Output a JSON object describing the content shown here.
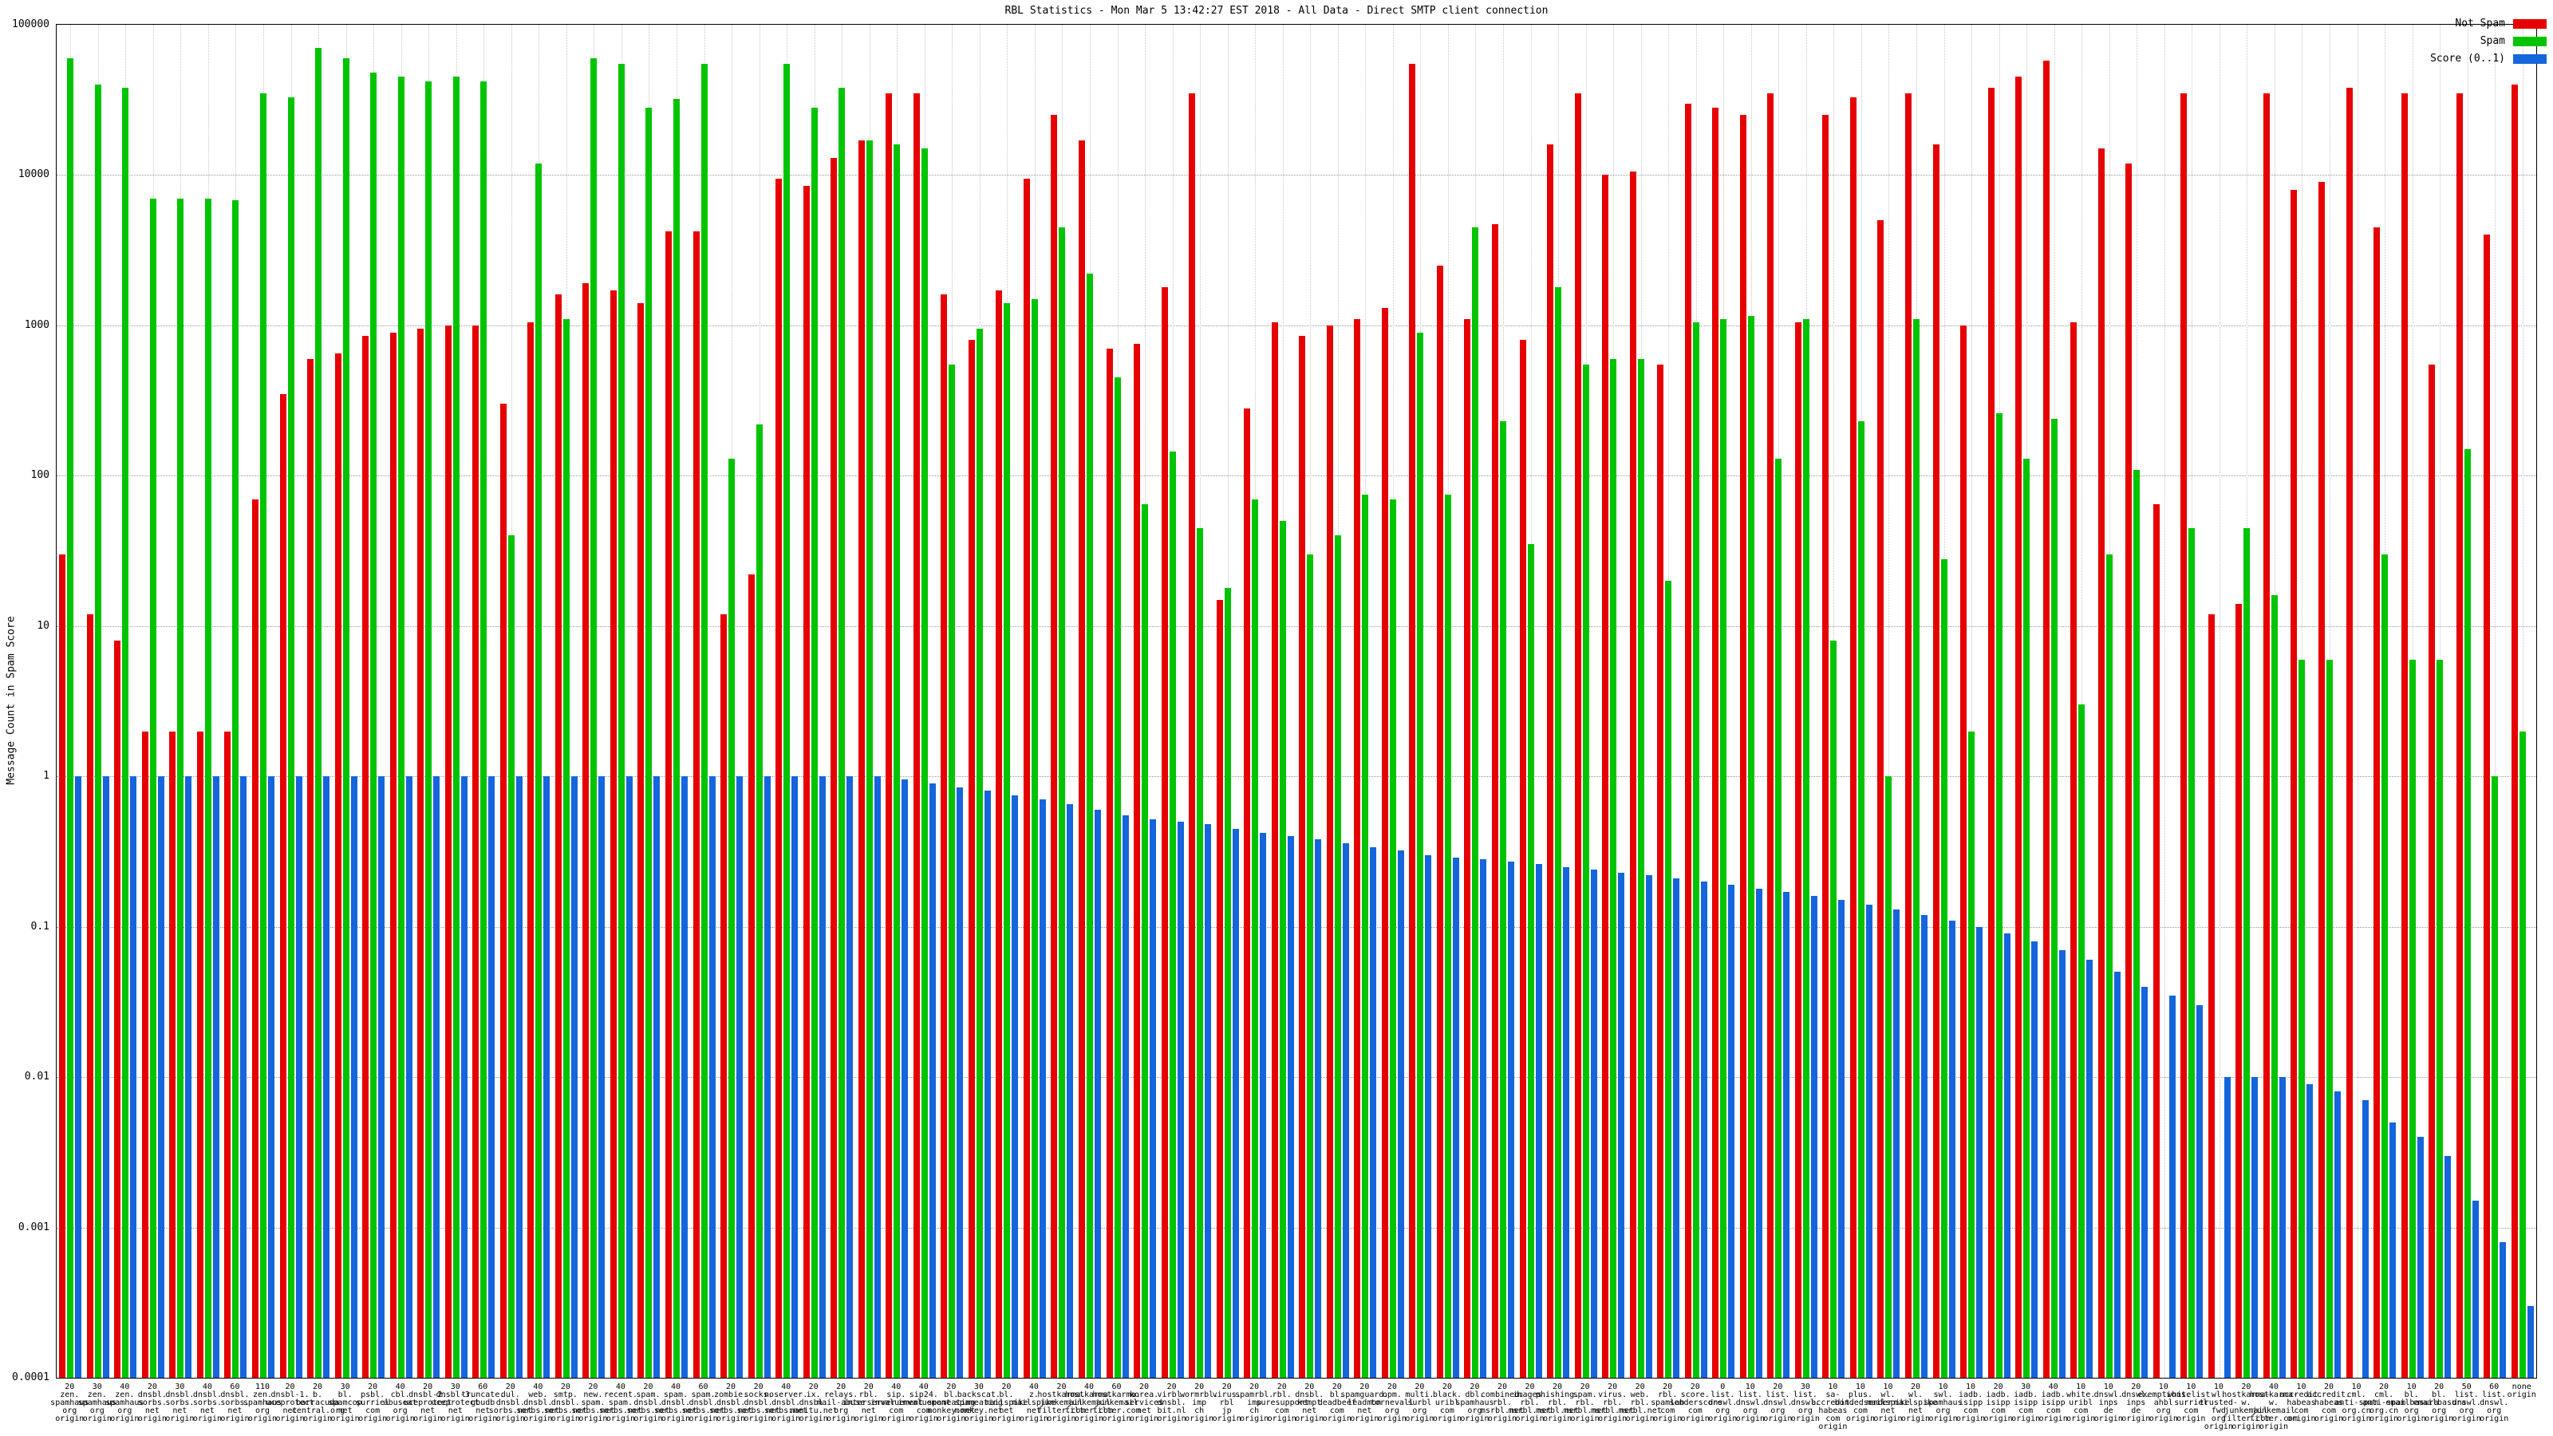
{
  "title": "RBL Statistics - Mon Mar  5 13:42:27 EST 2018 - All Data - Direct SMTP client connection",
  "axes": {
    "y_label": "Message Count in Spam Score",
    "y_ticks": [
      "100000",
      "10000",
      "1000",
      "100",
      "10",
      "1",
      "0.1",
      "0.01",
      "0.001",
      "0.0001"
    ],
    "y_max": 100000,
    "y_min": 0.0001
  },
  "legend": {
    "position": "top-right",
    "items": [
      "Not Spam",
      "Spam",
      "Score (0..1)"
    ]
  },
  "chart_data": {
    "type": "bar",
    "title": "RBL Statistics - Mon Mar  5 13:42:27 EST 2018 - All Data - Direct SMTP client connection",
    "xlabel": "",
    "ylabel": "Message Count in Spam Score",
    "yscale": "log",
    "ylim": [
      0.0001,
      100000
    ],
    "grid": true,
    "legend_position": "top-right",
    "categories": [
      "20\nzen.\nspamhaus\norg\norigin",
      "30\nzen.\nspamhaus\norg\norigin",
      "40\nzen.\nspamhaus\norg\norigin",
      "20\ndnsbl.\nsorbs.\nnet\norigin",
      "30\ndnsbl.\nsorbs.\nnet\norigin",
      "40\ndnsbl.\nsorbs.\nnet\norigin",
      "60\ndnsbl.\nsorbs.\nnet\norigin",
      "110\nzen.\nspamhaus\norg\norigin",
      "20\ndnsbl-1.\nuceprotect\nnet\norigin",
      "20\nb.\nbarracuda\ncentral.org\norigin",
      "30\nbl.\nspamcop\nnet\norigin",
      "20\npsbl.\nsurriel\ncom\norigin",
      "40\ncbl.\nabuseat\norg\norigin",
      "20\ndnsbl-2.\nuceprotect\nnet\norigin",
      "30\ndnsbl-3.\nuceprotect\nnet\norigin",
      "60\ntruncate.\ngbudb\nnet\norigin",
      "20\ndul.\ndnsbl.\nsorbs.net\norigin",
      "40\nweb.\ndnsbl.\nsorbs.net\norigin",
      "20\nsmtp.\ndnsbl.\nsorbs.net\norigin",
      "20\nnew.\nspam.\nsorbs.net\norigin",
      "40\nrecent.\nspam.\nsorbs.net\norigin",
      "20\nspam.\ndnsbl.\nsorbs.net\norigin",
      "40\nspam.\ndnsbl.\nsorbs.net\norigin",
      "60\nspam.\ndnsbl.\nsorbs.net\norigin",
      "20\nzombie.\ndnsbl.\nsorbs.net\norigin",
      "20\nsocks.\ndnsbl.\nsorbs.net\norigin",
      "40\nnoserver.\ndnsbl.\nsorbs.net\norigin",
      "20\nix.\ndnsbl.\nmanitu.net\norigin",
      "20\nrelays.\nmail-abuse\norg\norigin",
      "20\nrbl.\ninterserver\nnet\norigin",
      "40\nsip.\ninvaluement\ncom\norigin",
      "40\nsip24.\ninvaluement\ncom\norigin",
      "20\nbl.\nspameating\nmonkey.net\norigin",
      "30\nbackscat.\nspameating\nmonkey.net\norigin",
      "20\nbl.\nmailspike\nnet\norigin",
      "40\nz.\nmailspike\nnet\norigin",
      "20\nhostkarma.\njunkemail\nfilter.com\norigin",
      "40\nhostkarma.\njunkemail\nfilter.com\norigin",
      "60\nhostkarma.\njunkemail\nfilter.com\norigin",
      "20\nkorea.\nservices\nnet\norigin",
      "20\nvirbl.\ndnsbl.\nbit.nl\norigin",
      "20\nwormrbl.\nimp\nch\norigin",
      "20\nvirus.\nrbl\njp\norigin",
      "20\nspamrbl.\nimp\nch\norigin",
      "20\nrbl.\nsuresupport\ncom\norigin",
      "20\ndnsbl.\nkempt\nnet\norigin",
      "20\nbl.\ndeadbeef\ncom\norigin",
      "20\nspamguard.\nleadmon\nnet\norigin",
      "20\nopm.\ntornevall\norg\norigin",
      "20\nmulti.\nsurbl\norg\norigin",
      "20\nblack.\nuribl\ncom\norigin",
      "20\ndbl.\nspamhaus\norg\norigin",
      "20\ncombined.\nrbl.\nmsrbl.net\norigin",
      "20\nimages.\nrbl.\nmsrbl.net\norigin",
      "20\nphishing.\nrbl.\nmsrbl.net\norigin",
      "20\nspam.\nrbl.\nmsrbl.net\norigin",
      "20\nvirus.\nrbl.\nmsrbl.net\norigin",
      "20\nweb.\nrbl.\nmsrbl.net\norigin",
      "20\nrbl.\nspamlab\ncom\norigin",
      "20\nscore.\nsenderscore\ncom\norigin",
      "0\nlist.\ndnswl.\norg\norigin",
      "10\nlist.\ndnswl.\norg\norigin",
      "20\nlist.\ndnswl.\norg\norigin",
      "30\nlist.\ndnswl.\norg\norigin",
      "10\nsa-accredit.\nhabeas\ncom\norigin",
      "10\nplus.\nbondedsender\ncom\norigin",
      "10\nwl.\nmailspike\nnet\norigin",
      "20\nwl.\nmailspike\nnet\norigin",
      "10\nswl.\nspamhaus\norg\norigin",
      "10\niadb.\nisipp\ncom\norigin",
      "20\niadb.\nisipp\ncom\norigin",
      "30\niadb.\nisipp\ncom\norigin",
      "40\niadb.\nisipp\ncom\norigin",
      "10\nwhite.\nuribl\ncom\norigin",
      "10\ndnswl.\ninps\nde\norigin",
      "20\ndnswl.\ninps\nde\norigin",
      "10\nexemptions.\nahbl\norg\norigin",
      "10\nwhitelist.\nsurriel\ncom\norigin",
      "10\nwl.\ntrusted-fwd\norg\norigin",
      "20\nhostkarma-w.\njunkemail\nfilter.com\norigin",
      "40\nhostkarma-w.\njunkemail\nfilter.com\norigin",
      "10\naccredit.\nhabeas\ncom\norigin",
      "20\naccredit.\nhabeas\ncom\norigin",
      "10\ncml.\nanti-spam\norg.cn\norigin",
      "20\ncml.\nanti-spam\norg.cn\norigin",
      "10\nbl.\nemailbasura\norg\norigin",
      "20\nbl.\nemailbasura\norg\norigin",
      "50\nlist.\ndnswl.\norg\norigin",
      "60\nlist.\ndnswl.\norg\norigin",
      "none\norigin"
    ],
    "series": [
      {
        "name": "Not Spam",
        "color": "#e60000",
        "values": [
          30,
          12,
          8,
          2,
          2,
          2,
          2,
          70,
          350,
          600,
          650,
          850,
          900,
          950,
          1000,
          1000,
          300,
          1050,
          1600,
          1900,
          1700,
          1400,
          4200,
          4200,
          12,
          22,
          9500,
          8500,
          13000,
          17000,
          35000,
          35000,
          1600,
          800,
          1700,
          9500,
          25000,
          17000,
          700,
          750,
          1800,
          35000,
          15,
          280,
          1050,
          850,
          1000,
          1100,
          1300,
          55000,
          2500,
          1100,
          4700,
          800,
          16000,
          35000,
          10000,
          10500,
          550,
          30000,
          28000,
          25000,
          35000,
          1050,
          25000,
          33000,
          5000,
          35000,
          16000,
          1000,
          38000,
          45000,
          58000,
          1050,
          15000,
          12000,
          65,
          35000,
          12,
          14,
          35000,
          8000,
          9000,
          38000,
          4500,
          35000,
          550,
          35000,
          4000,
          40000
        ]
      },
      {
        "name": "Spam",
        "color": "#00c400",
        "values": [
          60000,
          40000,
          38000,
          7000,
          7000,
          7000,
          6800,
          35000,
          33000,
          70000,
          60000,
          48000,
          45000,
          42000,
          45000,
          42000,
          40,
          12000,
          1100,
          60000,
          55000,
          28000,
          32000,
          55000,
          130,
          220,
          55000,
          28000,
          38000,
          17000,
          16000,
          15000,
          550,
          950,
          1400,
          1500,
          4500,
          2200,
          450,
          65,
          145,
          45,
          18,
          70,
          50,
          30,
          40,
          75,
          70,
          900,
          75,
          4500,
          230,
          35,
          1800,
          550,
          600,
          600,
          20,
          1050,
          1100,
          1150,
          130,
          1100,
          8,
          230,
          1,
          1100,
          28,
          2,
          260,
          130,
          240,
          3,
          30,
          110,
          0,
          45,
          0,
          45,
          16,
          6,
          6,
          0,
          30,
          6,
          6,
          150,
          1,
          2
        ]
      },
      {
        "name": "Score (0..1)",
        "color": "#1565dc",
        "values": [
          1,
          1,
          1,
          1,
          1,
          1,
          1,
          1,
          1,
          1,
          1,
          1,
          1,
          1,
          1,
          1,
          1,
          1,
          1,
          1,
          1,
          1,
          1,
          1,
          1,
          1,
          1,
          1,
          1,
          1,
          0.95,
          0.9,
          0.85,
          0.8,
          0.75,
          0.7,
          0.65,
          0.6,
          0.55,
          0.52,
          0.5,
          0.48,
          0.45,
          0.42,
          0.4,
          0.38,
          0.36,
          0.34,
          0.32,
          0.3,
          0.29,
          0.28,
          0.27,
          0.26,
          0.25,
          0.24,
          0.23,
          0.22,
          0.21,
          0.2,
          0.19,
          0.18,
          0.17,
          0.16,
          0.15,
          0.14,
          0.13,
          0.12,
          0.11,
          0.1,
          0.09,
          0.08,
          0.07,
          0.06,
          0.05,
          0.04,
          0.035,
          0.03,
          0.01,
          0.01,
          0.01,
          0.009,
          0.008,
          0.007,
          0.005,
          0.004,
          0.003,
          0.0015,
          0.0008,
          0.0003
        ]
      }
    ]
  }
}
